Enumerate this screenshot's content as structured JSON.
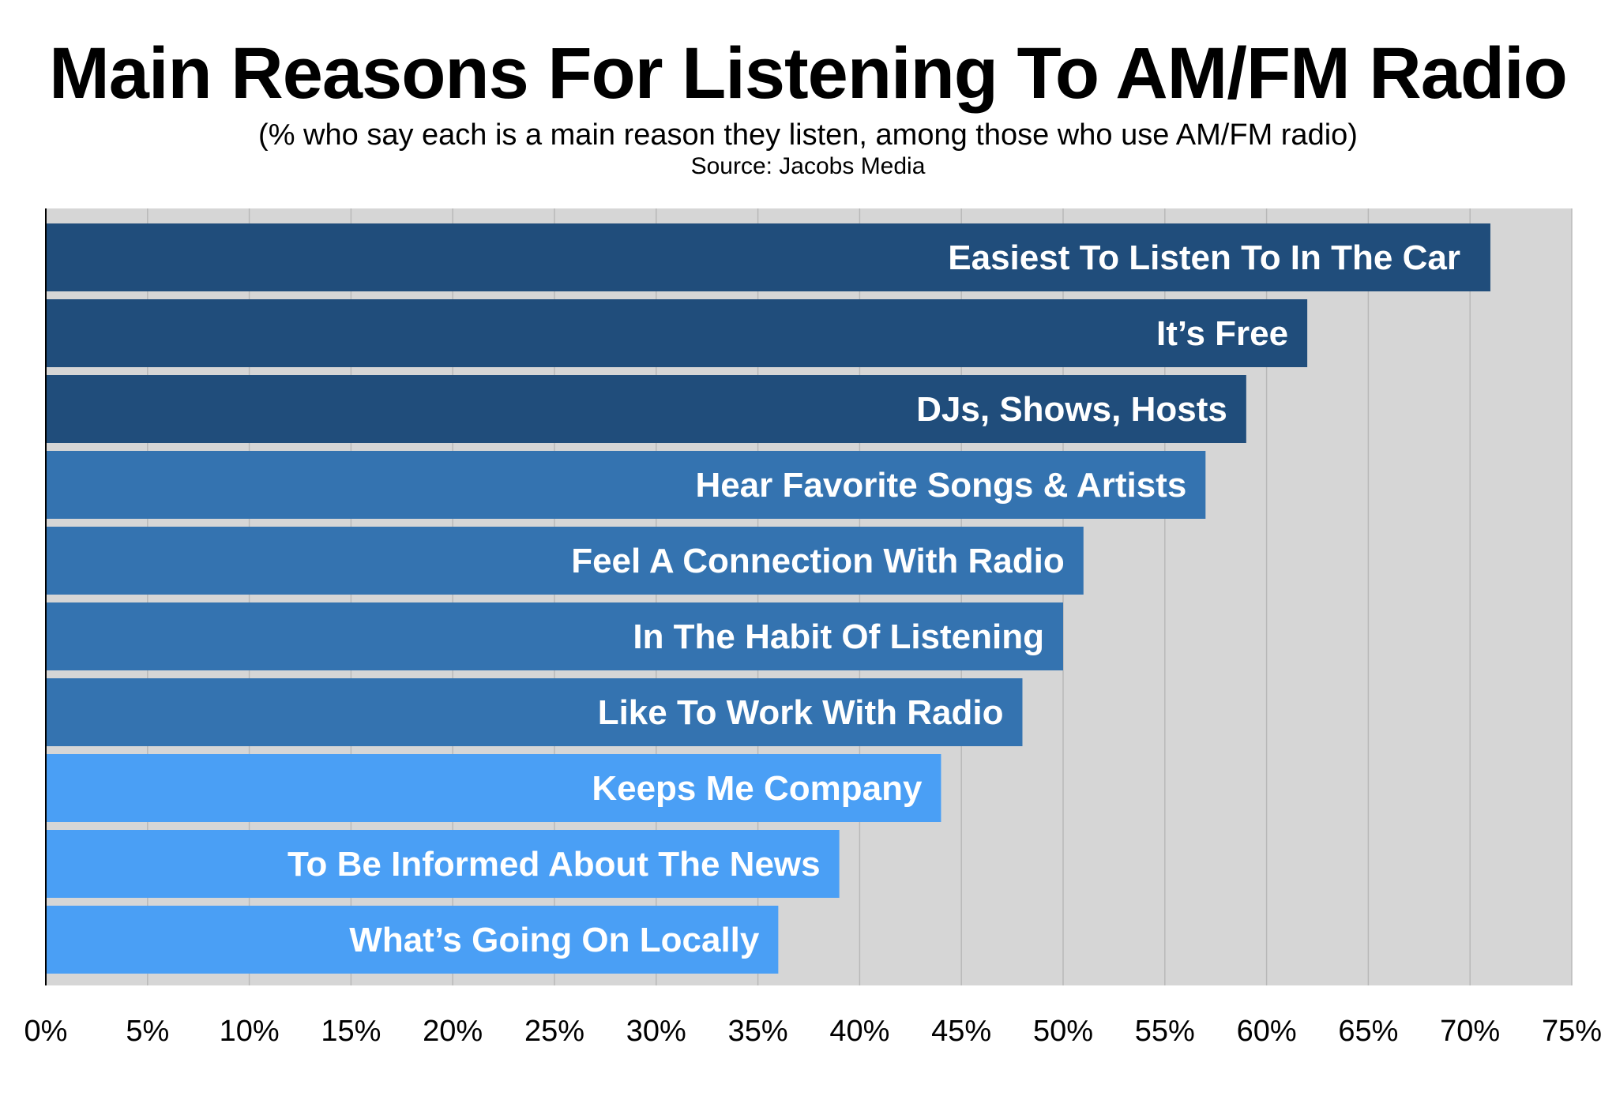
{
  "chart_data": {
    "type": "bar",
    "orientation": "horizontal",
    "title": "Main Reasons For Listening To AM/FM Radio",
    "subtitle": "(% who say each is a main reason they listen, among those who use AM/FM radio)",
    "source": "Source: Jacobs Media",
    "categories": [
      "Easiest To Listen To In The Car",
      "It’s Free",
      "DJs, Shows, Hosts",
      "Hear Favorite Songs & Artists",
      "Feel A  Connection With Radio",
      "In The Habit Of Listening",
      "Like To Work With Radio",
      "Keeps Me Company",
      "To Be Informed About The News",
      "What’s Going On Locally"
    ],
    "values": [
      71,
      62,
      59,
      57,
      51,
      50,
      48,
      44,
      39,
      36
    ],
    "bar_colors": [
      "#204d7b",
      "#204d7b",
      "#204d7b",
      "#3473b0",
      "#3473b0",
      "#3473b0",
      "#3473b0",
      "#4a9ff5",
      "#4a9ff5",
      "#4a9ff5"
    ],
    "xlim": [
      0,
      75
    ],
    "xticks": [
      0,
      5,
      10,
      15,
      20,
      25,
      30,
      35,
      40,
      45,
      50,
      55,
      60,
      65,
      70,
      75
    ],
    "xtick_labels": [
      "0%",
      "5%",
      "10%",
      "15%",
      "20%",
      "25%",
      "30%",
      "35%",
      "40%",
      "45%",
      "50%",
      "55%",
      "60%",
      "65%",
      "70%",
      "75%"
    ],
    "grid": true,
    "plot_background": "#d6d6d6",
    "legend": "none"
  }
}
